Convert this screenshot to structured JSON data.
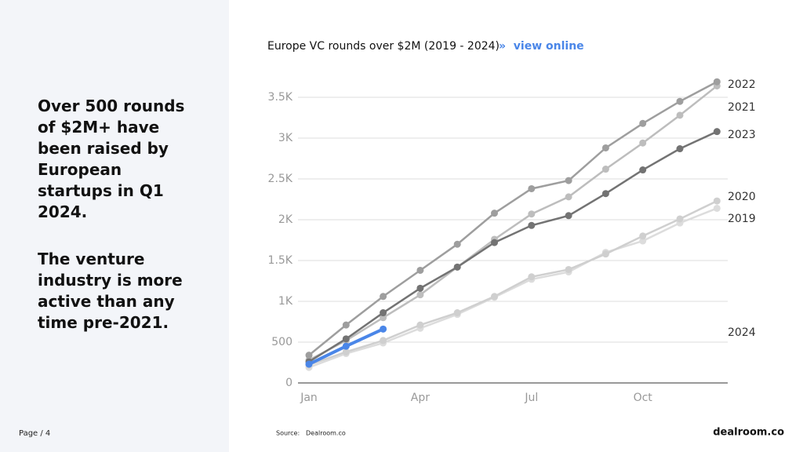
{
  "page": {
    "headline": [
      "Over 500 rounds of $2M+ have been raised by European startups in Q1 2024.",
      "The venture industry is more active than any time pre-2021."
    ],
    "page_number": "Page / 4",
    "source_label": "Source:",
    "source": "Dealroom.co",
    "logo": "dealroom.co",
    "link": "»  view online"
  },
  "chart_data": {
    "type": "line",
    "title": "Europe VC rounds over $2M (2019 - 2024)",
    "categories": [
      "Jan",
      null,
      null,
      "Apr",
      null,
      null,
      "Jul",
      null,
      null,
      "Oct",
      null,
      null
    ],
    "ylim": [
      0,
      3750
    ],
    "yticks": [
      0,
      500,
      {
        "value": 1000,
        "label": "1K"
      },
      {
        "value": 1500,
        "label": "1.5K"
      },
      {
        "value": 2000,
        "label": "2K"
      },
      {
        "value": 2500,
        "label": "2.5K"
      },
      {
        "value": 3000,
        "label": "3K"
      },
      {
        "value": 3500,
        "label": "3.5K"
      }
    ],
    "grid": true,
    "series": [
      {
        "name": "2019",
        "color": "#dcdcdc",
        "values": [
          190,
          360,
          490,
          670,
          840,
          1050,
          1270,
          1360,
          1600,
          1740,
          1960,
          2140
        ]
      },
      {
        "name": "2020",
        "color": "#cfcfcf",
        "values": [
          220,
          380,
          520,
          710,
          860,
          1060,
          1300,
          1390,
          1580,
          1800,
          2010,
          2230
        ]
      },
      {
        "name": "2021",
        "color": "#bdbdbd",
        "values": [
          280,
          520,
          800,
          1080,
          1420,
          1760,
          2070,
          2280,
          2620,
          2940,
          3280,
          3640
        ]
      },
      {
        "name": "2023",
        "color": "#737373",
        "values": [
          260,
          540,
          860,
          1160,
          1420,
          1720,
          1930,
          2050,
          2320,
          2610,
          2870,
          3080
        ]
      },
      {
        "name": "2022",
        "color": "#9e9e9e",
        "values": [
          340,
          710,
          1060,
          1380,
          1700,
          2080,
          2380,
          2480,
          2880,
          3180,
          3450,
          3690
        ]
      },
      {
        "name": "2024",
        "color": "#4a86e8",
        "values": [
          230,
          450,
          660,
          null,
          null,
          null,
          null,
          null,
          null,
          null,
          null,
          null
        ]
      }
    ]
  }
}
